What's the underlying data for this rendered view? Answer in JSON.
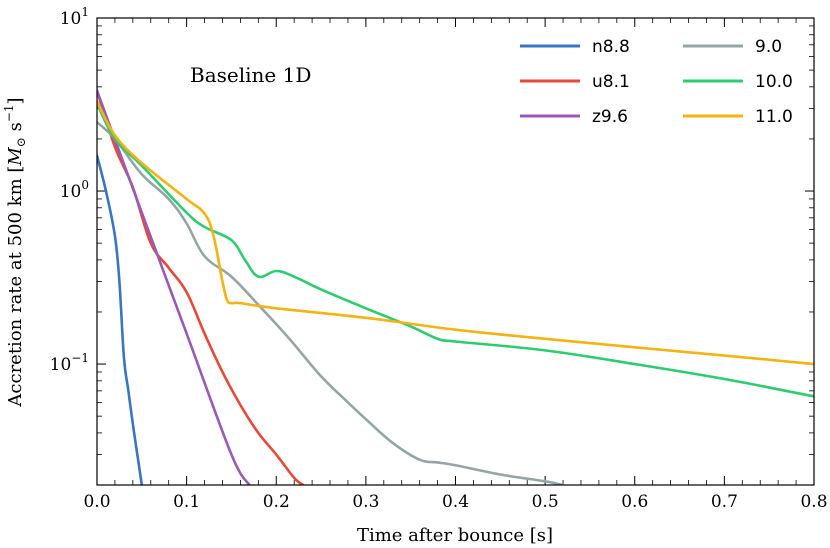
{
  "chart_data": {
    "type": "line",
    "annotation": "Baseline 1D",
    "xlabel": "Time after bounce [s]",
    "ylabel": {
      "prefix": "Accretion rate at 500 km [",
      "mass_symbol": "M",
      "sun_symbol": "⊙",
      "unit": " s",
      "exponent": "−1",
      "suffix": "]"
    },
    "xscale": "linear",
    "yscale": "log",
    "xlim": [
      0.0,
      0.8
    ],
    "ylim": [
      0.02,
      10
    ],
    "xticks": [
      0.0,
      0.1,
      0.2,
      0.3,
      0.4,
      0.5,
      0.6,
      0.7,
      0.8
    ],
    "xtick_labels": [
      "0.0",
      "0.1",
      "0.2",
      "0.3",
      "0.4",
      "0.5",
      "0.6",
      "0.7",
      "0.8"
    ],
    "yticks": [
      {
        "value": 10,
        "base": "10",
        "exp": "1"
      },
      {
        "value": 1,
        "base": "10",
        "exp": "0"
      },
      {
        "value": 0.1,
        "base": "10",
        "exp": "−1"
      }
    ],
    "legend_position": "top-right",
    "series": [
      {
        "name": "n8.8",
        "color": "#3a75c4",
        "x": [
          0.0,
          0.01,
          0.02,
          0.025,
          0.03,
          0.035,
          0.04,
          0.045,
          0.05
        ],
        "y": [
          1.6,
          1.0,
          0.55,
          0.3,
          0.11,
          0.07,
          0.045,
          0.03,
          0.02
        ]
      },
      {
        "name": "u8.1",
        "color": "#e8483a",
        "x": [
          0.0,
          0.02,
          0.04,
          0.06,
          0.08,
          0.1,
          0.12,
          0.14,
          0.16,
          0.18,
          0.2,
          0.22,
          0.23
        ],
        "y": [
          3.8,
          1.8,
          1.05,
          0.5,
          0.36,
          0.26,
          0.15,
          0.09,
          0.058,
          0.04,
          0.03,
          0.022,
          0.02
        ]
      },
      {
        "name": "z9.6",
        "color": "#9b59b6",
        "x": [
          0.0,
          0.05,
          0.1,
          0.15,
          0.17
        ],
        "y": [
          3.8,
          0.75,
          0.15,
          0.03,
          0.02
        ]
      },
      {
        "name": "9.0",
        "color": "#95a5a6",
        "x": [
          0.0,
          0.02,
          0.05,
          0.08,
          0.1,
          0.12,
          0.15,
          0.18,
          0.2,
          0.22,
          0.25,
          0.28,
          0.3,
          0.33,
          0.36,
          0.38,
          0.4,
          0.45,
          0.5,
          0.52
        ],
        "y": [
          2.5,
          2.0,
          1.25,
          0.9,
          0.65,
          0.42,
          0.32,
          0.22,
          0.17,
          0.13,
          0.085,
          0.06,
          0.048,
          0.035,
          0.028,
          0.027,
          0.026,
          0.023,
          0.021,
          0.02
        ]
      },
      {
        "name": "10.0",
        "color": "#2ecc71",
        "x": [
          0.0,
          0.02,
          0.05,
          0.1,
          0.12,
          0.15,
          0.165,
          0.18,
          0.2,
          0.22,
          0.25,
          0.3,
          0.35,
          0.38,
          0.4,
          0.5,
          0.6,
          0.7,
          0.8
        ],
        "y": [
          3.2,
          2.0,
          1.4,
          0.75,
          0.62,
          0.52,
          0.4,
          0.32,
          0.345,
          0.32,
          0.27,
          0.21,
          0.165,
          0.14,
          0.135,
          0.12,
          0.1,
          0.082,
          0.065
        ]
      },
      {
        "name": "11.0",
        "color": "#f5b313",
        "x": [
          0.0,
          0.02,
          0.05,
          0.1,
          0.12,
          0.13,
          0.14,
          0.145,
          0.15,
          0.16,
          0.2,
          0.3,
          0.4,
          0.5,
          0.6,
          0.7,
          0.8
        ],
        "y": [
          3.3,
          2.1,
          1.45,
          0.9,
          0.74,
          0.55,
          0.3,
          0.235,
          0.225,
          0.225,
          0.21,
          0.185,
          0.158,
          0.14,
          0.125,
          0.112,
          0.1
        ]
      }
    ]
  }
}
